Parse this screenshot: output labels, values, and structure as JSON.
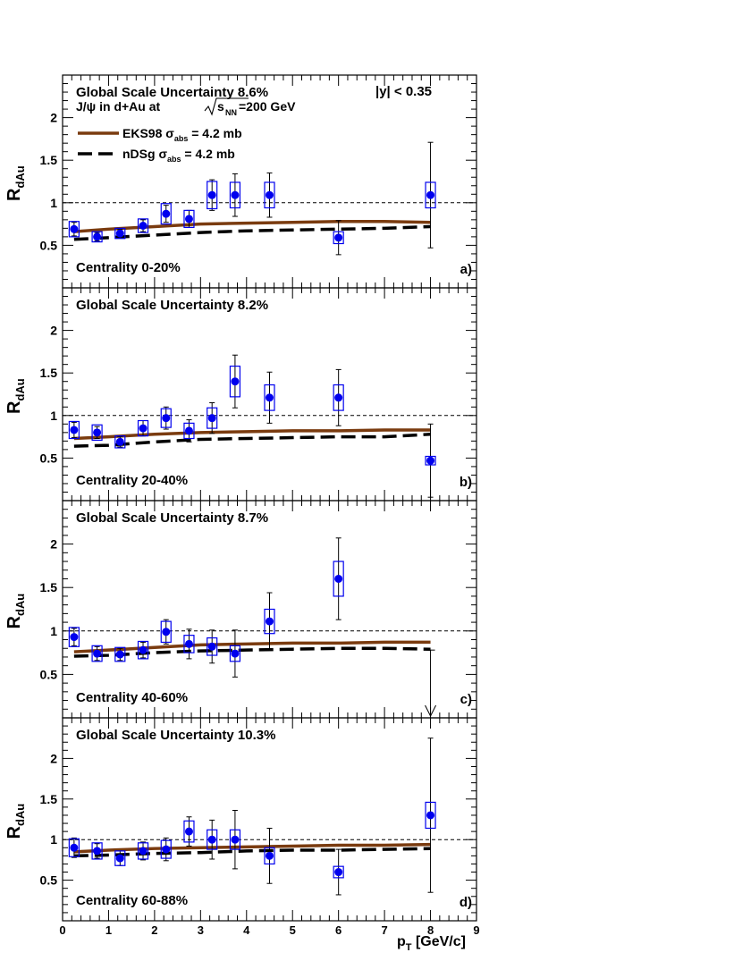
{
  "colors": {
    "data": "#0000ee",
    "eks98": "#7a3b0f",
    "ndsg": "#000000",
    "frame": "#000000"
  },
  "legend": {
    "line1_prefix": "J/ψ in d+Au at",
    "sqrt_s": "s",
    "sqrt_s_sub": "NN",
    "line1_suffix": "=200 GeV",
    "rapidity": "|y| < 0.35",
    "eks98_prefix": "EKS98 σ",
    "eks98_sub": "abs",
    "eks98_suffix": " = 4.2 mb",
    "ndsg_prefix": "nDSg σ",
    "ndsg_sub": "abs",
    "ndsg_suffix": " = 4.2 mb"
  },
  "axes": {
    "ylabel_main": "R",
    "ylabel_sub": "dAu",
    "xlabel_main": "p",
    "xlabel_sub": "T",
    "xlabel_suffix": " [GeV/c]",
    "x_ticks": [
      "0",
      "1",
      "2",
      "3",
      "4",
      "5",
      "6",
      "7",
      "8",
      "9"
    ],
    "y_ticks": [
      "0.5",
      "1",
      "1.5",
      "2"
    ]
  },
  "chart_data": [
    {
      "type": "scatter",
      "panel": "a)",
      "global_uncertainty": "Global Scale Uncertainty 8.6%",
      "centrality": "Centrality 0-20%",
      "xlim": [
        0,
        9
      ],
      "ylim": [
        0,
        2.5
      ],
      "points": [
        {
          "x": 0.25,
          "y": 0.69,
          "stat": 0.08,
          "sys": 0.09
        },
        {
          "x": 0.75,
          "y": 0.6,
          "stat": 0.05,
          "sys": 0.06
        },
        {
          "x": 1.25,
          "y": 0.64,
          "stat": 0.05,
          "sys": 0.06
        },
        {
          "x": 1.75,
          "y": 0.73,
          "stat": 0.07,
          "sys": 0.08
        },
        {
          "x": 2.25,
          "y": 0.87,
          "stat": 0.1,
          "sys": 0.12
        },
        {
          "x": 2.75,
          "y": 0.81,
          "stat": 0.1,
          "sys": 0.1
        },
        {
          "x": 3.25,
          "y": 1.09,
          "stat": 0.18,
          "sys": 0.16
        },
        {
          "x": 3.75,
          "y": 1.09,
          "stat": 0.25,
          "sys": 0.15
        },
        {
          "x": 4.5,
          "y": 1.09,
          "stat": 0.26,
          "sys": 0.15
        },
        {
          "x": 6.0,
          "y": 0.59,
          "stat": 0.2,
          "sys": 0.07
        },
        {
          "x": 8.0,
          "y": 1.09,
          "stat": 0.62,
          "sys": 0.15
        }
      ],
      "series": [
        {
          "name": "EKS98 σabs = 4.2 mb",
          "x": [
            0.25,
            1.0,
            2.0,
            3.0,
            4.0,
            5.0,
            6.0,
            7.0,
            8.0
          ],
          "values": [
            0.66,
            0.69,
            0.72,
            0.75,
            0.76,
            0.77,
            0.78,
            0.78,
            0.77
          ]
        },
        {
          "name": "nDSg σabs = 4.2 mb",
          "x": [
            0.25,
            1.0,
            2.0,
            3.0,
            4.0,
            5.0,
            6.0,
            7.0,
            8.0
          ],
          "values": [
            0.57,
            0.59,
            0.62,
            0.65,
            0.67,
            0.68,
            0.69,
            0.7,
            0.72
          ]
        }
      ]
    },
    {
      "type": "scatter",
      "panel": "b)",
      "global_uncertainty": "Global Scale Uncertainty 8.2%",
      "centrality": "Centrality 20-40%",
      "xlim": [
        0,
        9
      ],
      "ylim": [
        0,
        2.5
      ],
      "points": [
        {
          "x": 0.25,
          "y": 0.83,
          "stat": 0.09,
          "sys": 0.1
        },
        {
          "x": 0.75,
          "y": 0.8,
          "stat": 0.07,
          "sys": 0.09
        },
        {
          "x": 1.25,
          "y": 0.69,
          "stat": 0.06,
          "sys": 0.07
        },
        {
          "x": 1.75,
          "y": 0.85,
          "stat": 0.09,
          "sys": 0.09
        },
        {
          "x": 2.25,
          "y": 0.97,
          "stat": 0.13,
          "sys": 0.11
        },
        {
          "x": 2.75,
          "y": 0.82,
          "stat": 0.13,
          "sys": 0.09
        },
        {
          "x": 3.25,
          "y": 0.97,
          "stat": 0.18,
          "sys": 0.12
        },
        {
          "x": 3.75,
          "y": 1.4,
          "stat": 0.31,
          "sys": 0.18
        },
        {
          "x": 4.5,
          "y": 1.21,
          "stat": 0.3,
          "sys": 0.15
        },
        {
          "x": 6.0,
          "y": 1.21,
          "stat": 0.33,
          "sys": 0.15
        },
        {
          "x": 8.0,
          "y": 0.47,
          "stat": 0.43,
          "sys": 0.05
        }
      ],
      "series": [
        {
          "name": "EKS98 σabs = 4.2 mb",
          "x": [
            0.25,
            1.0,
            2.0,
            3.0,
            4.0,
            5.0,
            6.0,
            7.0,
            8.0
          ],
          "values": [
            0.73,
            0.75,
            0.78,
            0.8,
            0.81,
            0.82,
            0.82,
            0.83,
            0.83
          ]
        },
        {
          "name": "nDSg σabs = 4.2 mb",
          "x": [
            0.25,
            1.0,
            2.0,
            3.0,
            4.0,
            5.0,
            6.0,
            7.0,
            8.0
          ],
          "values": [
            0.64,
            0.65,
            0.69,
            0.72,
            0.73,
            0.74,
            0.75,
            0.75,
            0.78
          ]
        }
      ]
    },
    {
      "type": "scatter",
      "panel": "c)",
      "global_uncertainty": "Global Scale Uncertainty 8.7%",
      "centrality": "Centrality 40-60%",
      "xlim": [
        0,
        9
      ],
      "ylim": [
        0,
        2.5
      ],
      "points": [
        {
          "x": 0.25,
          "y": 0.93,
          "stat": 0.1,
          "sys": 0.11
        },
        {
          "x": 0.75,
          "y": 0.74,
          "stat": 0.08,
          "sys": 0.09
        },
        {
          "x": 1.25,
          "y": 0.73,
          "stat": 0.07,
          "sys": 0.08
        },
        {
          "x": 1.75,
          "y": 0.78,
          "stat": 0.09,
          "sys": 0.1
        },
        {
          "x": 2.25,
          "y": 0.99,
          "stat": 0.14,
          "sys": 0.12
        },
        {
          "x": 2.75,
          "y": 0.85,
          "stat": 0.17,
          "sys": 0.1
        },
        {
          "x": 3.25,
          "y": 0.82,
          "stat": 0.19,
          "sys": 0.1
        },
        {
          "x": 3.75,
          "y": 0.74,
          "stat": 0.27,
          "sys": 0.09
        },
        {
          "x": 4.5,
          "y": 1.11,
          "stat": 0.33,
          "sys": 0.14
        },
        {
          "x": 6.0,
          "y": 1.6,
          "stat": 0.47,
          "sys": 0.2
        },
        {
          "x": 8.0,
          "y": 0.0,
          "upper_limit": 0.78
        }
      ],
      "series": [
        {
          "name": "EKS98 σabs = 4.2 mb",
          "x": [
            0.25,
            1.0,
            2.0,
            3.0,
            4.0,
            5.0,
            6.0,
            7.0,
            8.0
          ],
          "values": [
            0.76,
            0.78,
            0.81,
            0.84,
            0.85,
            0.86,
            0.86,
            0.87,
            0.87
          ]
        },
        {
          "name": "nDSg σabs = 4.2 mb",
          "x": [
            0.25,
            1.0,
            2.0,
            3.0,
            4.0,
            5.0,
            6.0,
            7.0,
            8.0
          ],
          "values": [
            0.71,
            0.72,
            0.75,
            0.77,
            0.78,
            0.79,
            0.8,
            0.8,
            0.79
          ]
        }
      ]
    },
    {
      "type": "scatter",
      "panel": "d)",
      "global_uncertainty": "Global Scale Uncertainty 10.3%",
      "centrality": "Centrality 60-88%",
      "xlim": [
        0,
        9
      ],
      "ylim": [
        0,
        2.5
      ],
      "points": [
        {
          "x": 0.25,
          "y": 0.9,
          "stat": 0.12,
          "sys": 0.11
        },
        {
          "x": 0.75,
          "y": 0.86,
          "stat": 0.09,
          "sys": 0.1
        },
        {
          "x": 1.25,
          "y": 0.77,
          "stat": 0.09,
          "sys": 0.09
        },
        {
          "x": 1.75,
          "y": 0.86,
          "stat": 0.11,
          "sys": 0.1
        },
        {
          "x": 2.25,
          "y": 0.88,
          "stat": 0.14,
          "sys": 0.11
        },
        {
          "x": 2.75,
          "y": 1.1,
          "stat": 0.18,
          "sys": 0.13
        },
        {
          "x": 3.25,
          "y": 1.0,
          "stat": 0.24,
          "sys": 0.12
        },
        {
          "x": 3.75,
          "y": 1.0,
          "stat": 0.36,
          "sys": 0.12
        },
        {
          "x": 4.5,
          "y": 0.8,
          "stat": 0.34,
          "sys": 0.1
        },
        {
          "x": 6.0,
          "y": 0.6,
          "stat": 0.28,
          "sys": 0.07
        },
        {
          "x": 8.0,
          "y": 1.3,
          "stat": 0.95,
          "sys": 0.16
        }
      ],
      "series": [
        {
          "name": "EKS98 σabs = 4.2 mb",
          "x": [
            0.25,
            1.0,
            2.0,
            3.0,
            4.0,
            5.0,
            6.0,
            7.0,
            8.0
          ],
          "values": [
            0.85,
            0.87,
            0.89,
            0.9,
            0.91,
            0.92,
            0.93,
            0.93,
            0.94
          ]
        },
        {
          "name": "nDSg σabs = 4.2 mb",
          "x": [
            0.25,
            1.0,
            2.0,
            3.0,
            4.0,
            5.0,
            6.0,
            7.0,
            8.0
          ],
          "values": [
            0.8,
            0.81,
            0.83,
            0.84,
            0.86,
            0.87,
            0.87,
            0.88,
            0.89
          ]
        }
      ]
    }
  ]
}
